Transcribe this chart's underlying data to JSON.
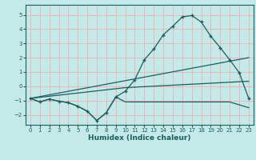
{
  "xlabel": "Humidex (Indice chaleur)",
  "bg_color": "#c5e8e8",
  "grid_color": "#e8b8b8",
  "line_color": "#1a5f5f",
  "xlim": [
    -0.5,
    23.5
  ],
  "ylim": [
    -2.7,
    5.7
  ],
  "xticks": [
    0,
    1,
    2,
    3,
    4,
    5,
    6,
    7,
    8,
    9,
    10,
    11,
    12,
    13,
    14,
    15,
    16,
    17,
    18,
    19,
    20,
    21,
    22,
    23
  ],
  "yticks": [
    -2,
    -1,
    0,
    1,
    2,
    3,
    4,
    5
  ],
  "line1_x": [
    0,
    1,
    2,
    3,
    4,
    5,
    6,
    7,
    8,
    9,
    10,
    11,
    12,
    13,
    14,
    15,
    16,
    17,
    18,
    19,
    20,
    21,
    22,
    23
  ],
  "line1_y": [
    -0.85,
    -1.1,
    -0.9,
    -1.05,
    -1.15,
    -1.4,
    -1.75,
    -2.4,
    -1.85,
    -0.75,
    -0.35,
    0.45,
    1.85,
    2.6,
    3.6,
    4.2,
    4.85,
    4.95,
    4.5,
    3.5,
    2.7,
    1.85,
    0.95,
    -0.85
  ],
  "line2_x": [
    0,
    23
  ],
  "line2_y": [
    -0.85,
    2.0
  ],
  "line3_x": [
    0,
    10,
    23
  ],
  "line3_y": [
    -0.85,
    -0.1,
    0.35
  ],
  "line4_x": [
    0,
    1,
    2,
    3,
    4,
    5,
    6,
    7,
    8,
    9,
    10,
    11,
    12,
    13,
    14,
    15,
    16,
    17,
    18,
    19,
    20,
    21,
    22,
    23
  ],
  "line4_y": [
    -0.85,
    -1.1,
    -0.9,
    -1.05,
    -1.15,
    -1.4,
    -1.75,
    -2.4,
    -1.85,
    -0.75,
    -1.1,
    -1.1,
    -1.1,
    -1.1,
    -1.1,
    -1.1,
    -1.1,
    -1.1,
    -1.1,
    -1.1,
    -1.1,
    -1.1,
    -1.3,
    -1.5
  ]
}
